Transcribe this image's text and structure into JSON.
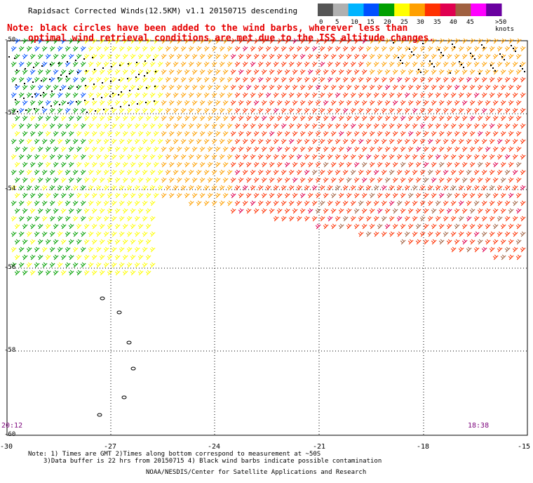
{
  "title": "Rapidsact Corrected Winds(12.5KM) v1.1 20150715 descending",
  "notes": {
    "line1": "Note: black circles have been added to the wind barbs, wherever less than",
    "line2": "optimal wind retrieval conditions are met due to the ISS altitude changes."
  },
  "legend": {
    "labels": [
      "0",
      "5",
      "10",
      "15",
      "20",
      "25",
      "30",
      "35",
      "40",
      "45",
      ">50 knots"
    ],
    "colors": [
      "#555555",
      "#b0b0b0",
      "#00b4ff",
      "#0050ff",
      "#00a000",
      "#ffff00",
      "#ffa000",
      "#ff3000",
      "#e00050",
      "#a06040",
      "#ff00ff",
      "#6a00a0"
    ]
  },
  "axes": {
    "lat_labels": [
      "-50",
      "-52",
      "-54",
      "-56",
      "-58",
      "-60"
    ],
    "lon_labels": [
      "-30",
      "-27",
      "-24",
      "-21",
      "-18",
      "-15"
    ]
  },
  "times": {
    "left": "20:12",
    "right": "18:38"
  },
  "footnotes": {
    "line1": "Note: 1) Times are GMT 2)Times along bottom correspond to measurement at ~50S",
    "line2": "3)Data buffer is 22 hrs from 20150715 4) Black wind barbs indicate possible contamination"
  },
  "credit": "NOAA/NESDIS/Center for Satellite Applications and Research"
}
